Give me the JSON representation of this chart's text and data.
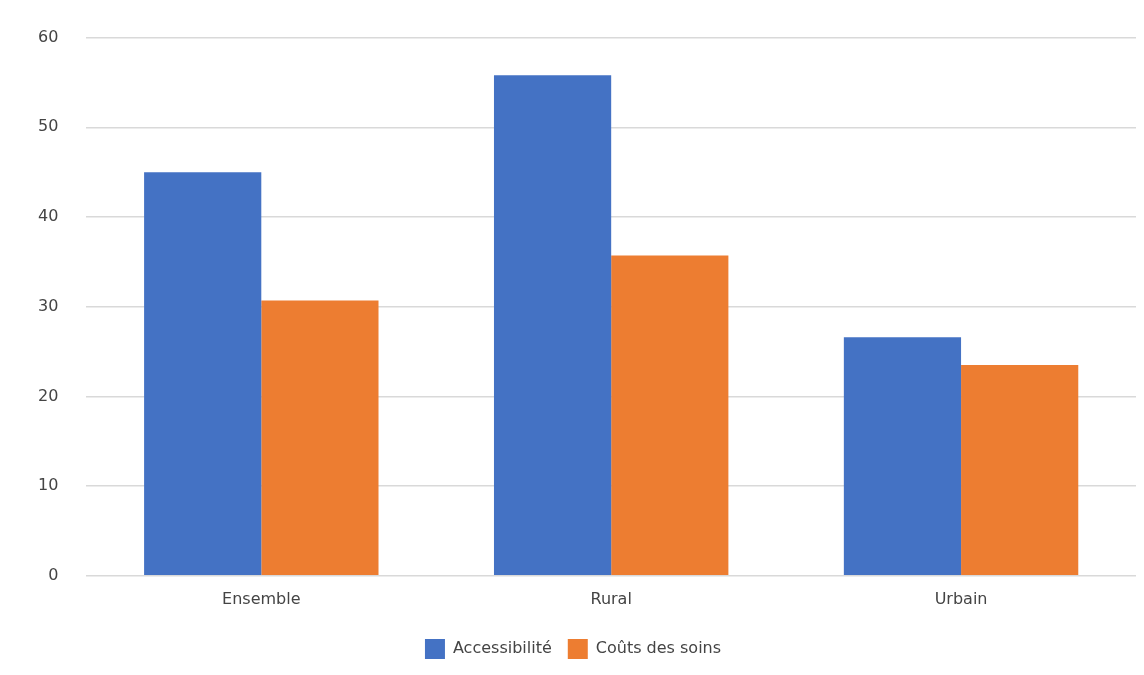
{
  "chart_data": {
    "type": "bar",
    "categories": [
      "Ensemble",
      "Rural",
      "Urbain"
    ],
    "series": [
      {
        "name": "Accessibilité",
        "color": "#4472c4",
        "values": [
          45.0,
          55.8,
          26.6
        ]
      },
      {
        "name": "Coûts des soins",
        "color": "#ed7d31",
        "values": [
          30.7,
          35.7,
          23.5
        ]
      }
    ],
    "ylim": [
      0,
      60
    ],
    "yticks": [
      0,
      10,
      20,
      30,
      40,
      50,
      60
    ],
    "grid": "y",
    "legend": "bottom"
  }
}
